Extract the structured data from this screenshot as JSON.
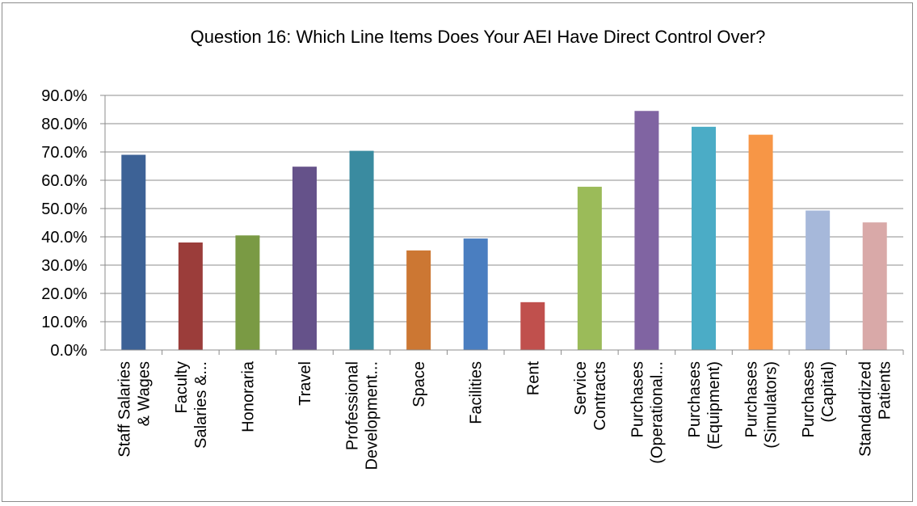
{
  "chart_data": {
    "type": "bar",
    "title": "Question 16:  Which Line Items Does Your AEI Have Direct Control Over?",
    "xlabel": "",
    "ylabel": "",
    "ylim": [
      0,
      90
    ],
    "y_ticks": [
      "0.0%",
      "10.0%",
      "20.0%",
      "30.0%",
      "40.0%",
      "50.0%",
      "60.0%",
      "70.0%",
      "80.0%",
      "90.0%"
    ],
    "grid": true,
    "legend": "none",
    "categories": [
      [
        "Staff Salaries",
        "& Wages"
      ],
      [
        "Faculty",
        "Salaries &..."
      ],
      [
        "Honoraria"
      ],
      [
        "Travel"
      ],
      [
        "Professional",
        "Development..."
      ],
      [
        "Space"
      ],
      [
        "Facilities"
      ],
      [
        "Rent"
      ],
      [
        "Service",
        "Contracts"
      ],
      [
        "Purchases",
        "(Operational..."
      ],
      [
        "Purchases",
        "(Equipment)"
      ],
      [
        "Purchases",
        "(Simulators)"
      ],
      [
        "Purchases",
        "(Capital)"
      ],
      [
        "Standardized",
        "Patients"
      ]
    ],
    "values": [
      69.0,
      38.0,
      40.5,
      64.8,
      70.4,
      35.2,
      39.4,
      16.9,
      57.7,
      84.5,
      78.9,
      76.1,
      49.3,
      45.1
    ],
    "colors": [
      "#3d6296",
      "#9b3d3a",
      "#7a9a44",
      "#65528a",
      "#3a8ba0",
      "#cc7733",
      "#4a7ec0",
      "#c0504d",
      "#9bbb59",
      "#8064a2",
      "#4bacc6",
      "#f79646",
      "#a6b8da",
      "#d9a9a8"
    ]
  }
}
